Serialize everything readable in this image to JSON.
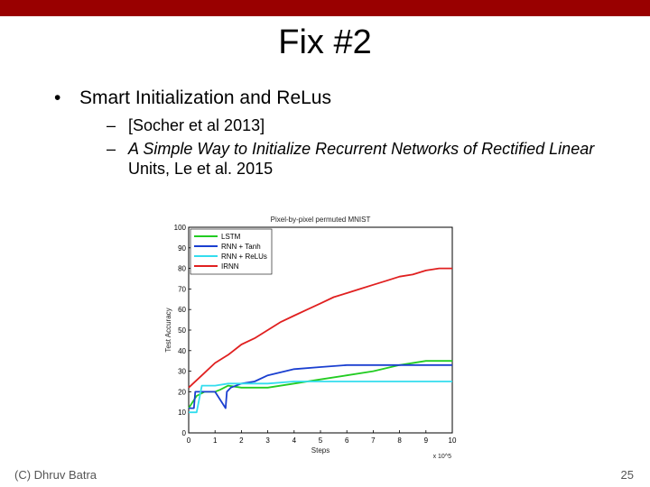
{
  "slide": {
    "title": "Fix #2",
    "bullet": "Smart Initialization and ReLus",
    "sub1": "[Socher et al 2013]",
    "sub2_italic": "A Simple Way to Initialize Recurrent Networks of Rectified Linear",
    "sub2_rest": " Units, Le et al. 2015",
    "footer_left": "(C) Dhruv Batra",
    "footer_right": "25"
  },
  "chart_data": {
    "type": "line",
    "title": "Pixel-by-pixel permuted MNIST",
    "xlabel": "Steps",
    "ylabel": "Test Accuracy",
    "x_multiplier": "x 10^5",
    "xlim": [
      0,
      10
    ],
    "ylim": [
      0,
      100
    ],
    "xticks": [
      0,
      1,
      2,
      3,
      4,
      5,
      6,
      7,
      8,
      9,
      10
    ],
    "yticks": [
      0,
      10,
      20,
      30,
      40,
      50,
      60,
      70,
      80,
      90,
      100
    ],
    "legend_position": "top-left",
    "series": [
      {
        "name": "LSTM",
        "color": "#22cc22",
        "x": [
          0,
          0.3,
          0.6,
          1.0,
          1.2,
          1.5,
          2.0,
          3.0,
          4.0,
          5.0,
          6.0,
          7.0,
          8.0,
          9.0,
          10.0
        ],
        "y": [
          12,
          18,
          20,
          20,
          21,
          23,
          22,
          22,
          24,
          26,
          28,
          30,
          33,
          35,
          35
        ]
      },
      {
        "name": "RNN + Tanh",
        "color": "#1a3fd0",
        "x": [
          0,
          0.2,
          0.25,
          0.5,
          1.0,
          1.4,
          1.45,
          1.6,
          2.0,
          2.5,
          3.0,
          4.0,
          5.0,
          6.0,
          7.0,
          8.0,
          9.0,
          10.0
        ],
        "y": [
          12,
          12,
          20,
          20,
          20,
          12,
          20,
          22,
          24,
          25,
          28,
          31,
          32,
          33,
          33,
          33,
          33,
          33
        ]
      },
      {
        "name": "RNN + ReLUs",
        "color": "#33ddee",
        "x": [
          0,
          0.3,
          0.5,
          1.0,
          1.5,
          2.0,
          3.0,
          4.0,
          5.0,
          6.0,
          7.0,
          8.0,
          9.0,
          10.0
        ],
        "y": [
          10,
          10,
          23,
          23,
          24,
          24,
          24,
          25,
          25,
          25,
          25,
          25,
          25,
          25
        ]
      },
      {
        "name": "IRNN",
        "color": "#e02020",
        "x": [
          0,
          0.5,
          1.0,
          1.5,
          2.0,
          2.5,
          3.0,
          3.5,
          4.0,
          4.5,
          5.0,
          5.5,
          6.0,
          6.5,
          7.0,
          7.5,
          8.0,
          8.5,
          9.0,
          9.5,
          10.0
        ],
        "y": [
          22,
          28,
          34,
          38,
          43,
          46,
          50,
          54,
          57,
          60,
          63,
          66,
          68,
          70,
          72,
          74,
          76,
          77,
          79,
          80,
          80
        ]
      }
    ]
  }
}
